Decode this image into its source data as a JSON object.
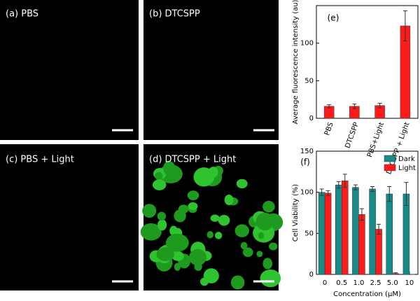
{
  "panels": [
    "(a) PBS",
    "(b) DTCSPP",
    "(c) PBS + Light",
    "(d) DTCSPP + Light"
  ],
  "chart_data": [
    {
      "type": "bar",
      "label": "(e)",
      "ylabel": "Average fluorescence intensity (au)",
      "categories": [
        "PBS",
        "DTCSPP",
        "PBS+Light",
        "DTCSPP + Light"
      ],
      "series": [
        {
          "color": "#ff1a1a",
          "values": [
            16,
            16,
            17,
            123
          ],
          "errors": [
            2,
            3,
            3,
            20
          ]
        }
      ],
      "ylim": [
        0,
        150
      ],
      "yticks": [
        0,
        50,
        100
      ]
    },
    {
      "type": "bar",
      "label": "(f)",
      "ylabel": "Cell Viability (%)",
      "xlabel": "Concentration (μM)",
      "categories": [
        "0",
        "0.5",
        "1.0",
        "2.5",
        "5.0",
        "10"
      ],
      "series": [
        {
          "name": "Dark",
          "color": "#178a8a",
          "values": [
            100,
            109,
            106,
            104,
            98,
            98
          ],
          "errors": [
            4,
            4,
            3,
            3,
            9,
            14
          ]
        },
        {
          "name": "Light",
          "color": "#ff1a1a",
          "values": [
            99,
            114,
            73,
            55,
            1,
            0
          ],
          "errors": [
            3,
            8,
            7,
            6,
            1,
            0
          ]
        }
      ],
      "ylim": [
        0,
        150
      ],
      "yticks": [
        0,
        50,
        100,
        150
      ],
      "legend": "upper-right"
    }
  ]
}
